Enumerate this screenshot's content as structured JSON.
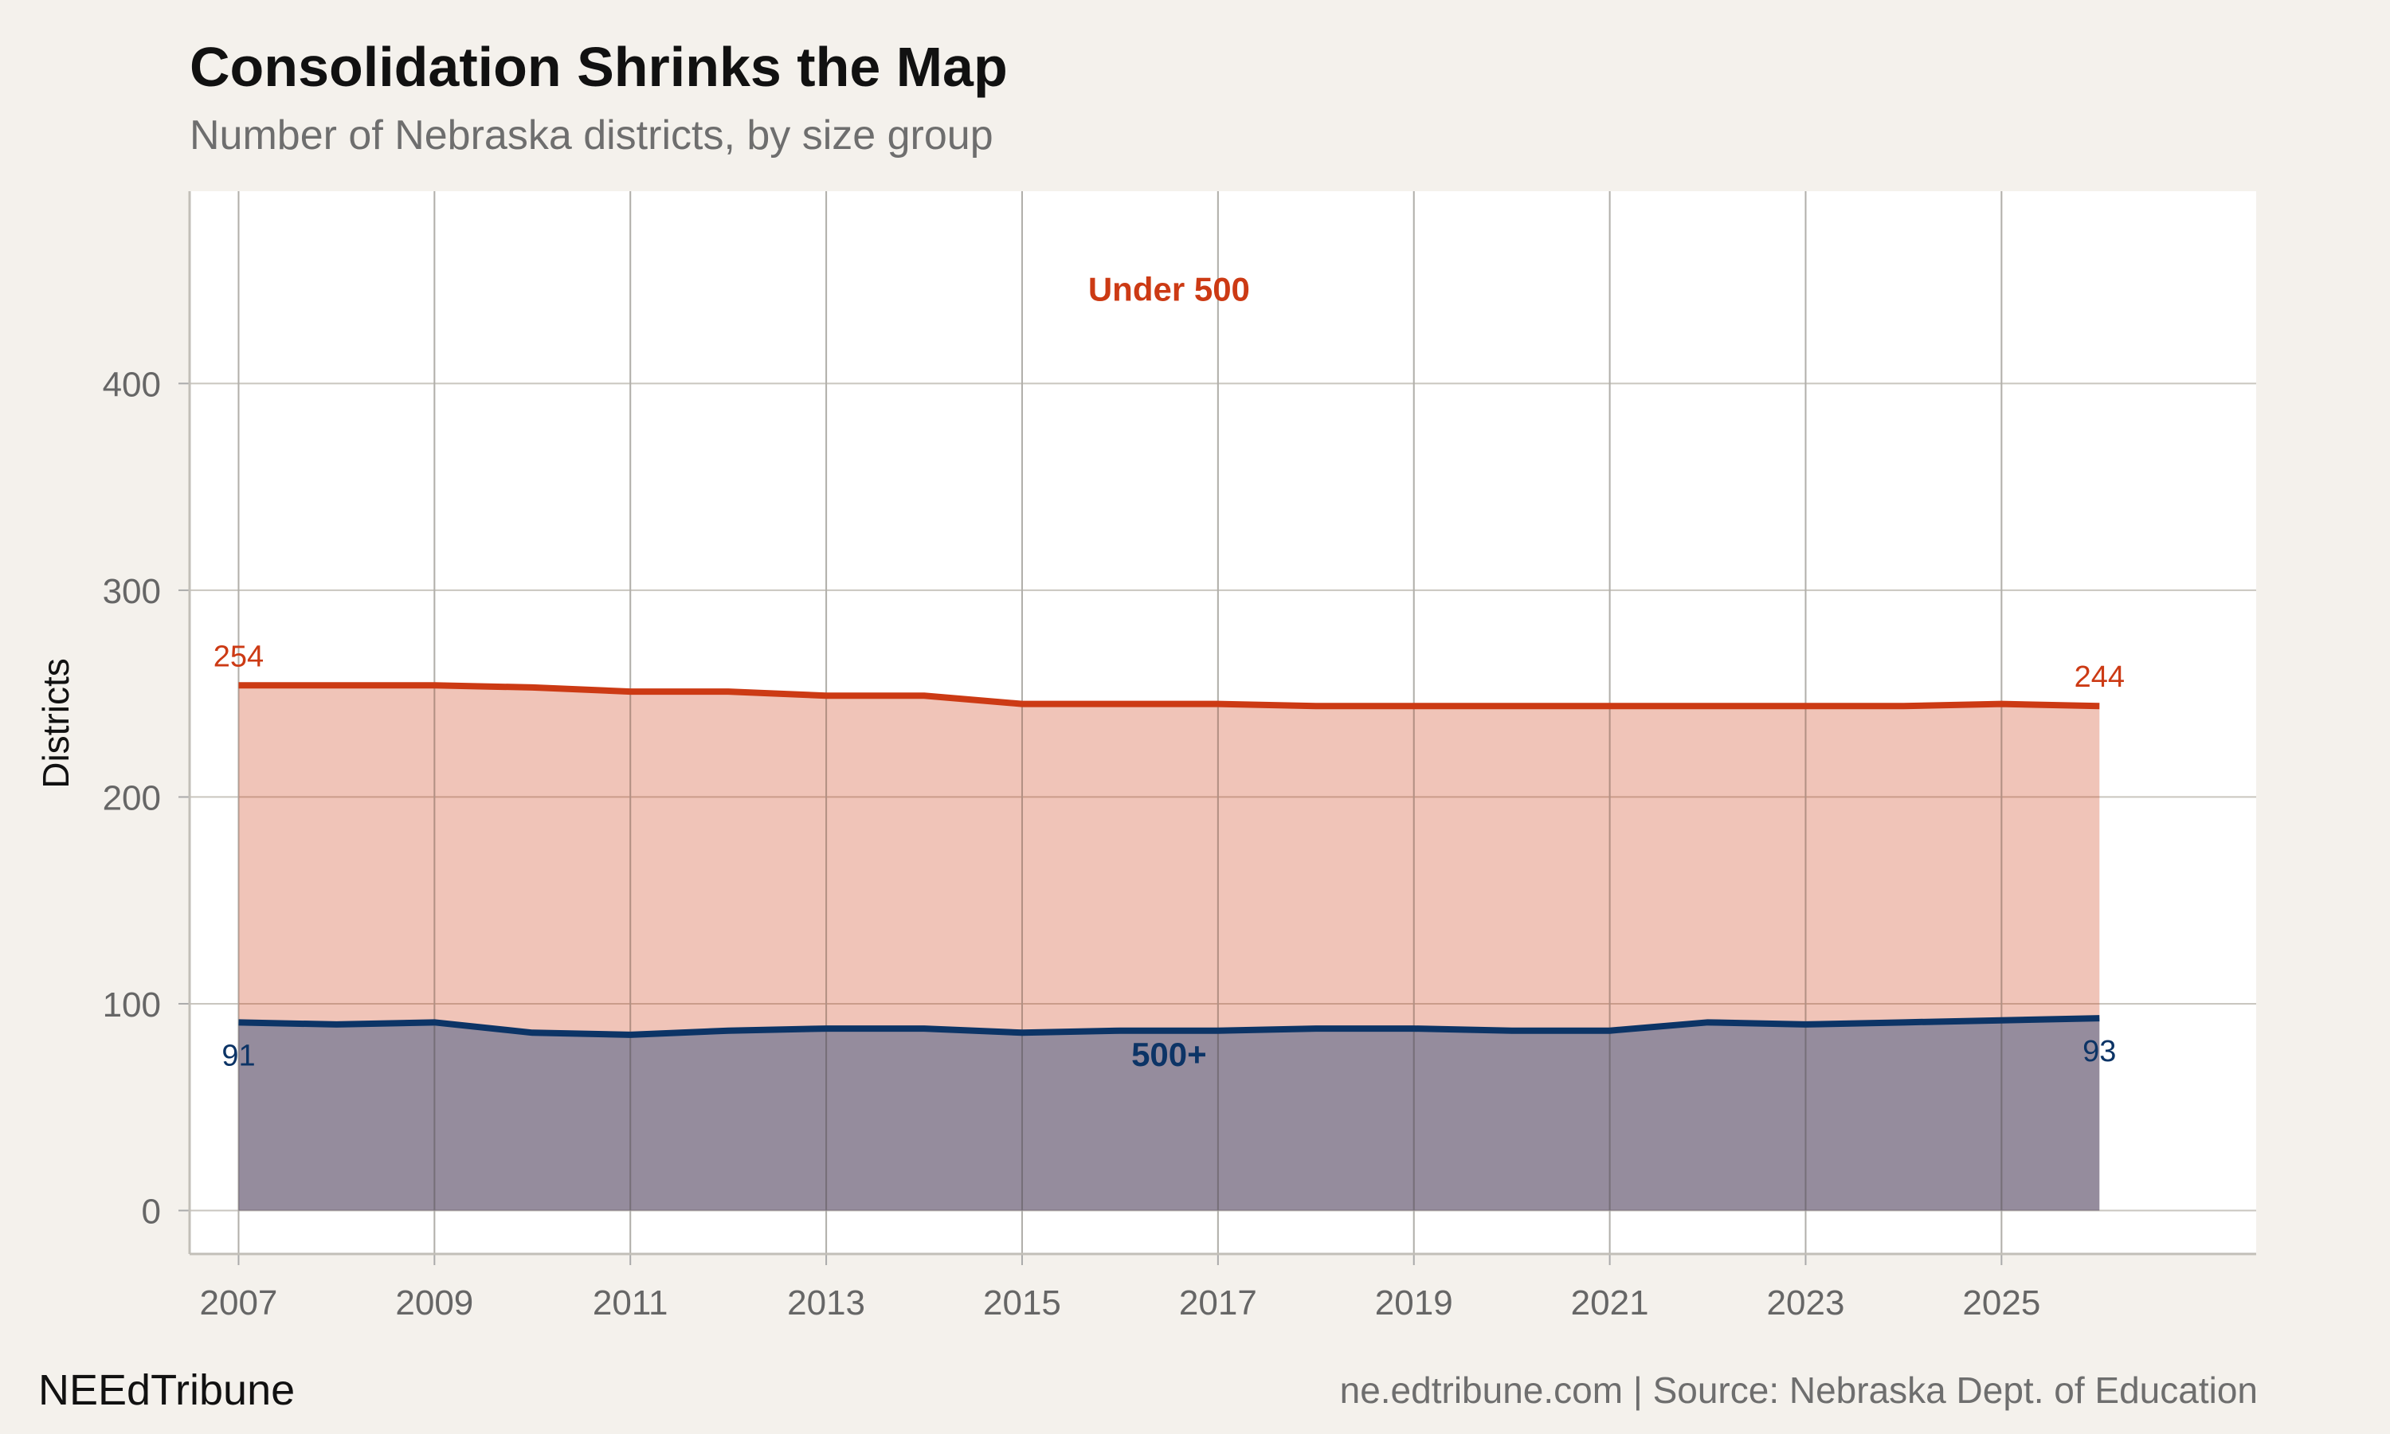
{
  "header": {
    "title": "Consolidation Shrinks the Map",
    "subtitle": "Number of Nebraska districts, by size group"
  },
  "footer": {
    "brand": "NEEdTribune",
    "source": "ne.edtribune.com | Source: Nebraska Dept. of Education"
  },
  "colors": {
    "under500": "#cc3a14",
    "over500": "#0c3466",
    "panel": "#ffffff",
    "background": "#f4f1ec",
    "grid": "#c9c6bf"
  },
  "chart_data": {
    "type": "area",
    "ylabel": "Districts",
    "xlabel": "",
    "x": [
      2007,
      2008,
      2009,
      2010,
      2011,
      2012,
      2013,
      2014,
      2015,
      2016,
      2017,
      2018,
      2019,
      2020,
      2021,
      2022,
      2023,
      2024,
      2025,
      2026
    ],
    "xticks": [
      "2007",
      "2009",
      "2011",
      "2013",
      "2015",
      "2017",
      "2019",
      "2021",
      "2023",
      "2025"
    ],
    "yticks": [
      "0",
      "100",
      "200",
      "300",
      "400"
    ],
    "xlim": [
      2006.5,
      2027.6
    ],
    "ylim": [
      -21,
      493
    ],
    "grid": true,
    "series": [
      {
        "name": "Under 500",
        "values": [
          254,
          254,
          254,
          253,
          251,
          251,
          249,
          249,
          245,
          245,
          245,
          244,
          244,
          244,
          244,
          244,
          244,
          244,
          245,
          244
        ],
        "start_label": "254",
        "end_label": "244"
      },
      {
        "name": "500+",
        "values": [
          91,
          90,
          91,
          86,
          85,
          87,
          88,
          88,
          86,
          87,
          87,
          88,
          88,
          87,
          87,
          91,
          90,
          91,
          92,
          93
        ],
        "start_label": "91",
        "end_label": "93"
      }
    ]
  }
}
